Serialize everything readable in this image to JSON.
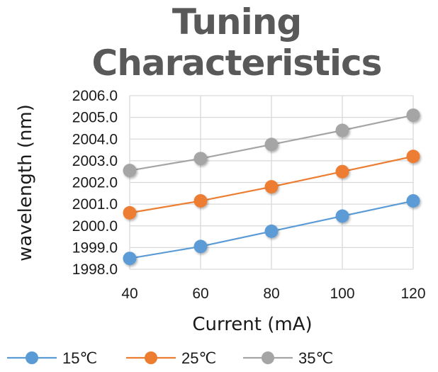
{
  "chart_data": {
    "type": "line",
    "title": "Tuning Characteristics",
    "xlabel": "Current (mA)",
    "ylabel": "wavelength (nm)",
    "x": [
      40,
      60,
      80,
      100,
      120
    ],
    "x_tick_labels": [
      "40",
      "60",
      "80",
      "100",
      "120"
    ],
    "ylim": [
      1998.0,
      2006.0
    ],
    "y_ticks": [
      1998.0,
      1999.0,
      2000.0,
      2001.0,
      2002.0,
      2003.0,
      2004.0,
      2005.0,
      2006.0
    ],
    "y_tick_labels": [
      "1998.0",
      "1999.0",
      "2000.0",
      "2001.0",
      "2002.0",
      "2003.0",
      "2004.0",
      "2005.0",
      "2006.0"
    ],
    "grid": true,
    "legend_position": "bottom",
    "series": [
      {
        "name": "15℃",
        "color": "#5b9bd5",
        "values": [
          1998.5,
          1999.05,
          1999.75,
          2000.45,
          2001.15
        ]
      },
      {
        "name": "25℃",
        "color": "#ed7d31",
        "values": [
          2000.6,
          2001.15,
          2001.8,
          2002.5,
          2003.2
        ]
      },
      {
        "name": "35℃",
        "color": "#a5a5a5",
        "values": [
          2002.55,
          2003.1,
          2003.75,
          2004.4,
          2005.1
        ]
      }
    ]
  }
}
